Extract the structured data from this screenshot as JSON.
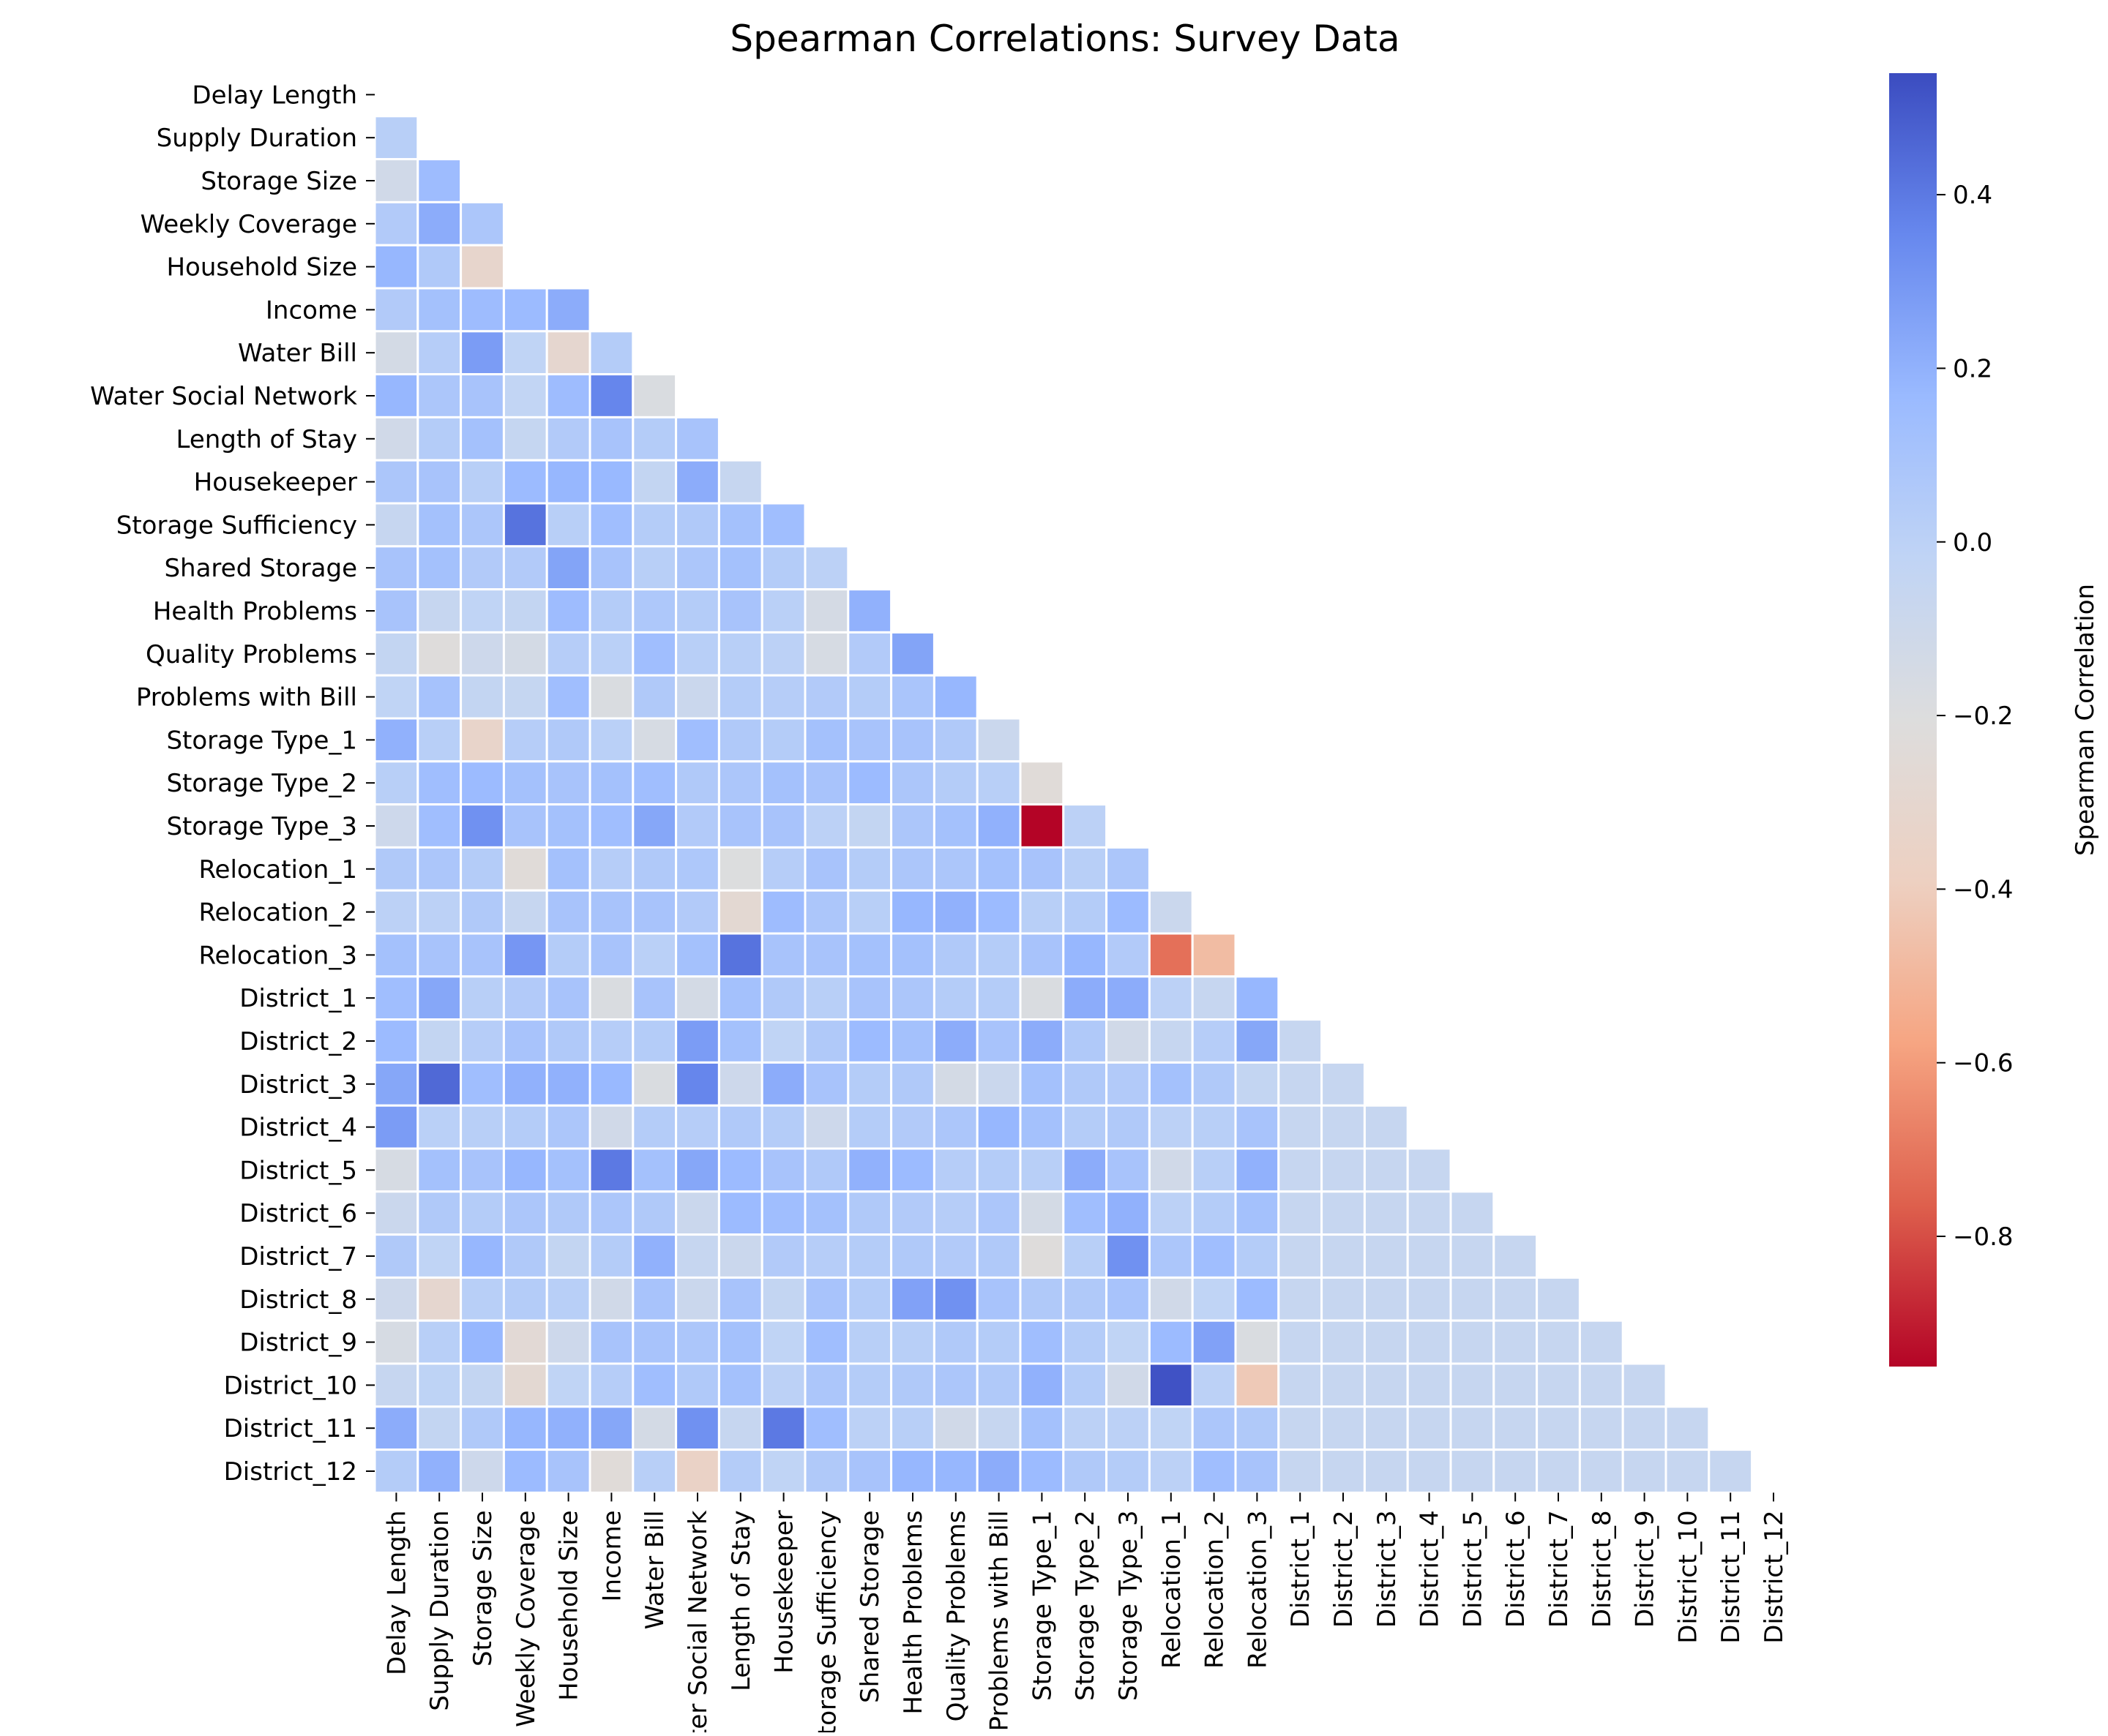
{
  "chart_data": {
    "type": "heatmap",
    "title": "Spearman Correlations: Survey Data",
    "variables": [
      "Delay Length",
      "Supply Duration",
      "Storage Size",
      "Weekly Coverage",
      "Household Size",
      "Income",
      "Water Bill",
      "Water Social Network",
      "Length of Stay",
      "Housekeeper",
      "Storage Sufficiency",
      "Shared Storage",
      "Health Problems",
      "Quality Problems",
      "Problems with Bill",
      "Storage Type_1",
      "Storage Type_2",
      "Storage Type_3",
      "Relocation_1",
      "Relocation_2",
      "Relocation_3",
      "District_1",
      "District_2",
      "District_3",
      "District_4",
      "District_5",
      "District_6",
      "District_7",
      "District_8",
      "District_9",
      "District_10",
      "District_11",
      "District_12"
    ],
    "mask": "upper triangle including diagonal",
    "lower_triangle_rows": [
      [],
      [
        0.02
      ],
      [
        -0.12,
        0.15
      ],
      [
        0.05,
        0.22,
        0.08
      ],
      [
        0.18,
        0.06,
        -0.32
      ],
      [
        0.05,
        0.12,
        0.15,
        0.16,
        0.22
      ],
      [
        -0.14,
        0.03,
        0.28,
        -0.02,
        -0.3,
        0.04
      ],
      [
        0.18,
        0.08,
        0.1,
        -0.03,
        0.15,
        0.36,
        -0.18
      ],
      [
        -0.12,
        0.04,
        0.12,
        -0.05,
        0.05,
        0.1,
        0.04,
        0.1
      ],
      [
        0.08,
        0.1,
        0.02,
        0.16,
        0.18,
        0.17,
        -0.04,
        0.22,
        -0.06
      ],
      [
        -0.06,
        0.12,
        0.08,
        0.42,
        0.02,
        0.14,
        0.04,
        0.06,
        0.12,
        0.14
      ],
      [
        0.1,
        0.12,
        0.05,
        0.05,
        0.25,
        0.1,
        0.02,
        0.08,
        0.12,
        0.04,
        0.0
      ],
      [
        0.1,
        -0.06,
        -0.02,
        -0.04,
        0.15,
        0.04,
        0.07,
        0.04,
        0.1,
        0.01,
        -0.15,
        0.2
      ],
      [
        -0.04,
        -0.22,
        -0.1,
        -0.14,
        0.03,
        0.01,
        0.14,
        0.02,
        0.02,
        0.0,
        -0.16,
        0.05,
        0.25
      ],
      [
        -0.02,
        0.11,
        -0.04,
        -0.05,
        0.14,
        -0.18,
        0.06,
        -0.08,
        0.04,
        0.03,
        0.05,
        0.04,
        0.09,
        0.18
      ],
      [
        0.2,
        0.02,
        -0.33,
        0.03,
        0.06,
        0.01,
        -0.16,
        0.14,
        0.06,
        0.04,
        0.12,
        0.1,
        0.1,
        0.06,
        -0.08
      ],
      [
        0.02,
        0.14,
        0.16,
        0.12,
        0.1,
        0.12,
        0.14,
        0.06,
        0.08,
        0.12,
        0.1,
        0.16,
        0.08,
        0.04,
        0.02,
        -0.24
      ],
      [
        -0.1,
        0.14,
        0.32,
        0.1,
        0.12,
        0.14,
        0.24,
        0.05,
        0.1,
        0.1,
        0.0,
        -0.04,
        0.08,
        0.12,
        0.2,
        -0.95,
        0.0
      ],
      [
        0.06,
        0.08,
        0.04,
        -0.24,
        0.12,
        0.03,
        0.06,
        0.07,
        -0.2,
        0.03,
        0.1,
        0.04,
        0.08,
        0.08,
        0.12,
        0.1,
        0.02,
        0.08
      ],
      [
        0.0,
        0.0,
        0.06,
        -0.06,
        0.1,
        0.1,
        0.1,
        0.05,
        -0.28,
        0.15,
        0.08,
        0.02,
        0.18,
        0.2,
        0.16,
        0.02,
        0.04,
        0.16,
        -0.08
      ],
      [
        0.12,
        0.1,
        0.1,
        0.3,
        0.04,
        0.1,
        0.01,
        0.12,
        0.42,
        0.1,
        0.1,
        0.12,
        0.12,
        0.06,
        0.04,
        0.1,
        0.18,
        0.05,
        -0.72,
        -0.48
      ],
      [
        0.14,
        0.24,
        0.02,
        0.05,
        0.1,
        -0.18,
        0.1,
        -0.14,
        0.12,
        0.06,
        0.02,
        0.1,
        0.08,
        0.04,
        0.04,
        -0.18,
        0.22,
        0.22,
        0.0,
        -0.06,
        0.18
      ],
      [
        0.16,
        -0.04,
        0.03,
        0.1,
        0.06,
        0.03,
        0.04,
        0.28,
        0.12,
        -0.02,
        0.06,
        0.16,
        0.12,
        0.22,
        0.1,
        0.22,
        0.06,
        -0.12,
        -0.06,
        0.03,
        0.24,
        -0.06
      ],
      [
        0.24,
        0.45,
        0.14,
        0.2,
        0.2,
        0.17,
        -0.18,
        0.36,
        -0.1,
        0.22,
        0.1,
        0.04,
        0.06,
        -0.14,
        -0.08,
        0.12,
        0.06,
        0.05,
        0.12,
        0.06,
        -0.04,
        -0.06,
        -0.06
      ],
      [
        0.28,
        0.01,
        0.02,
        0.04,
        0.08,
        -0.12,
        0.04,
        0.03,
        0.06,
        0.04,
        -0.1,
        0.04,
        0.05,
        0.08,
        0.18,
        0.12,
        0.04,
        0.06,
        0.0,
        0.02,
        0.1,
        -0.06,
        -0.06,
        -0.06
      ],
      [
        -0.16,
        0.12,
        0.1,
        0.18,
        0.12,
        0.4,
        0.12,
        0.24,
        0.16,
        0.1,
        0.06,
        0.2,
        0.16,
        0.03,
        0.04,
        0.02,
        0.22,
        0.1,
        -0.12,
        0.02,
        0.2,
        -0.06,
        -0.06,
        -0.06,
        -0.06
      ],
      [
        -0.08,
        0.06,
        0.04,
        0.08,
        0.06,
        0.08,
        0.06,
        -0.08,
        0.16,
        0.14,
        0.12,
        0.06,
        0.05,
        0.03,
        0.08,
        -0.14,
        0.14,
        0.2,
        0.0,
        0.04,
        0.12,
        -0.06,
        -0.06,
        -0.06,
        -0.06,
        -0.06
      ],
      [
        0.06,
        -0.02,
        0.18,
        0.06,
        -0.04,
        0.04,
        0.2,
        -0.06,
        -0.08,
        0.05,
        0.03,
        0.04,
        0.06,
        0.05,
        0.06,
        -0.22,
        0.02,
        0.32,
        0.08,
        0.14,
        0.04,
        -0.06,
        -0.06,
        -0.06,
        -0.06,
        -0.06,
        -0.06
      ],
      [
        -0.1,
        -0.3,
        0.02,
        0.04,
        0.02,
        -0.12,
        0.1,
        -0.08,
        0.1,
        -0.04,
        0.1,
        0.04,
        0.26,
        0.32,
        0.1,
        0.06,
        0.06,
        0.1,
        -0.12,
        -0.02,
        0.16,
        -0.06,
        -0.06,
        -0.06,
        -0.06,
        -0.06,
        -0.06,
        -0.06
      ],
      [
        -0.16,
        0.02,
        0.18,
        -0.26,
        -0.1,
        0.1,
        0.1,
        0.08,
        0.12,
        -0.02,
        0.14,
        0.02,
        0.02,
        0.06,
        0.04,
        0.14,
        0.04,
        -0.02,
        0.16,
        0.26,
        -0.18,
        -0.06,
        -0.06,
        -0.06,
        -0.06,
        -0.06,
        -0.06,
        -0.06,
        -0.06
      ],
      [
        -0.06,
        -0.01,
        -0.04,
        -0.28,
        -0.02,
        0.03,
        0.14,
        0.06,
        0.12,
        0.0,
        0.08,
        0.04,
        0.06,
        0.08,
        0.06,
        0.2,
        0.04,
        -0.12,
        0.52,
        0.0,
        -0.42,
        -0.06,
        -0.06,
        -0.06,
        -0.06,
        -0.06,
        -0.06,
        -0.06,
        -0.06,
        -0.06
      ],
      [
        0.22,
        -0.04,
        0.06,
        0.18,
        0.2,
        0.24,
        -0.14,
        0.32,
        -0.06,
        0.4,
        0.14,
        0.0,
        0.02,
        -0.12,
        -0.06,
        0.12,
        0.0,
        0.0,
        -0.02,
        0.08,
        0.06,
        -0.06,
        -0.06,
        -0.06,
        -0.06,
        -0.06,
        -0.06,
        -0.06,
        -0.06,
        -0.06,
        -0.06
      ],
      [
        0.04,
        0.2,
        -0.1,
        0.16,
        0.1,
        -0.24,
        0.02,
        -0.36,
        0.04,
        -0.02,
        0.06,
        0.1,
        0.18,
        0.18,
        0.22,
        0.16,
        0.06,
        0.04,
        0.0,
        0.14,
        0.1,
        -0.06,
        -0.06,
        -0.06,
        -0.06,
        -0.06,
        -0.06,
        -0.06,
        -0.06,
        -0.06,
        -0.06,
        -0.06
      ]
    ],
    "colormap": "coolwarm",
    "vmin": -0.95,
    "vmax": 0.54,
    "colorbar": {
      "label": "Spearman Correlation",
      "ticks": [
        0.4,
        0.2,
        0.0,
        -0.2,
        -0.4,
        -0.6,
        -0.8
      ],
      "tick_labels": [
        "0.4",
        "0.2",
        "0.0",
        "−0.2",
        "−0.4",
        "−0.6",
        "−0.8"
      ]
    },
    "xlabel": "",
    "ylabel": "",
    "grid": "white cell borders"
  }
}
